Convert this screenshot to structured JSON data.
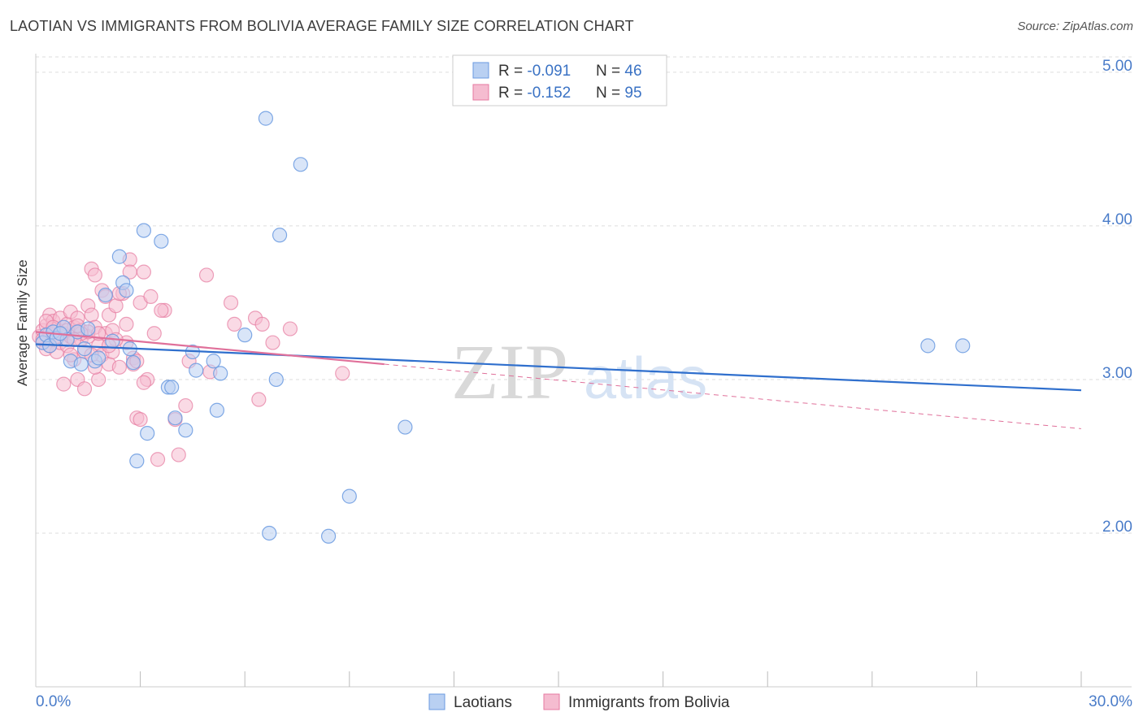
{
  "header": {
    "title": "LAOTIAN VS IMMIGRANTS FROM BOLIVIA AVERAGE FAMILY SIZE CORRELATION CHART",
    "source": "Source: ZipAtlas.com"
  },
  "watermark": {
    "zip": "ZIP",
    "atlas": "atlas"
  },
  "colors": {
    "laotians": "#6a9ae0",
    "laotians_fill": "#b9d0f2",
    "bolivia": "#e67aa0",
    "bolivia_fill": "#f5bcd0",
    "laotians_line": "#2f6fcd",
    "bolivia_line": "#e0709a",
    "grid": "#dddddd",
    "axis_label": "#4a7cc9"
  },
  "legend_box": {
    "rows": [
      {
        "r_label": "R = ",
        "r_value": "-0.091",
        "n_label": "N = ",
        "n_value": "46"
      },
      {
        "r_label": "R = ",
        "r_value": "-0.152",
        "n_label": "N = ",
        "n_value": "95"
      }
    ]
  },
  "bottom_legend": [
    "Laotians",
    "Immigrants from Bolivia"
  ],
  "chart_data": {
    "type": "scatter",
    "title": "LAOTIAN VS IMMIGRANTS FROM BOLIVIA AVERAGE FAMILY SIZE CORRELATION CHART",
    "xlabel": "",
    "ylabel": "Average Family Size",
    "xlim": [
      0,
      30
    ],
    "ylim": [
      1.0,
      5.1
    ],
    "x_tick_labels": [
      "0.0%",
      "30.0%"
    ],
    "y_ticks": [
      2.0,
      3.0,
      4.0,
      5.0
    ],
    "y_tick_labels": [
      "2.00",
      "3.00",
      "4.00",
      "5.00"
    ],
    "grid": "horizontal dashed",
    "legend_placement": "top-center",
    "series": [
      {
        "name": "Laotians",
        "r": -0.091,
        "n": 46,
        "trend": {
          "x": [
            0,
            30
          ],
          "y": [
            3.23,
            2.93
          ]
        },
        "points": [
          [
            0.2,
            3.24
          ],
          [
            0.3,
            3.29
          ],
          [
            0.4,
            3.22
          ],
          [
            0.5,
            3.31
          ],
          [
            0.6,
            3.27
          ],
          [
            0.8,
            3.34
          ],
          [
            0.9,
            3.26
          ],
          [
            1.0,
            3.12
          ],
          [
            1.2,
            3.31
          ],
          [
            1.4,
            3.2
          ],
          [
            1.5,
            3.33
          ],
          [
            1.7,
            3.12
          ],
          [
            1.8,
            3.14
          ],
          [
            2.0,
            3.55
          ],
          [
            2.2,
            3.25
          ],
          [
            2.4,
            3.8
          ],
          [
            2.5,
            3.63
          ],
          [
            2.7,
            3.2
          ],
          [
            2.8,
            3.11
          ],
          [
            3.1,
            3.97
          ],
          [
            3.2,
            2.65
          ],
          [
            2.9,
            2.47
          ],
          [
            3.6,
            3.9
          ],
          [
            3.8,
            2.95
          ],
          [
            3.9,
            2.95
          ],
          [
            4.0,
            2.75
          ],
          [
            4.3,
            2.67
          ],
          [
            4.5,
            3.18
          ],
          [
            4.6,
            3.06
          ],
          [
            5.1,
            3.12
          ],
          [
            5.2,
            2.8
          ],
          [
            5.3,
            3.04
          ],
          [
            6.0,
            3.29
          ],
          [
            6.6,
            4.7
          ],
          [
            6.7,
            2.0
          ],
          [
            6.9,
            3.0
          ],
          [
            7.0,
            3.94
          ],
          [
            7.6,
            4.4
          ],
          [
            8.4,
            1.98
          ],
          [
            9.0,
            2.24
          ],
          [
            10.6,
            2.69
          ],
          [
            25.6,
            3.22
          ],
          [
            26.6,
            3.22
          ],
          [
            1.3,
            3.1
          ],
          [
            0.7,
            3.3
          ],
          [
            2.6,
            3.58
          ]
        ]
      },
      {
        "name": "Immigrants from Bolivia",
        "r": -0.152,
        "n": 95,
        "trend": {
          "x": [
            0,
            10
          ],
          "y": [
            3.31,
            3.1
          ]
        },
        "trend_ext": {
          "x": [
            10,
            30
          ],
          "y": [
            3.1,
            2.68
          ]
        },
        "points": [
          [
            0.1,
            3.28
          ],
          [
            0.2,
            3.32
          ],
          [
            0.2,
            3.24
          ],
          [
            0.3,
            3.2
          ],
          [
            0.3,
            3.35
          ],
          [
            0.4,
            3.3
          ],
          [
            0.4,
            3.42
          ],
          [
            0.5,
            3.26
          ],
          [
            0.5,
            3.38
          ],
          [
            0.6,
            3.33
          ],
          [
            0.6,
            3.18
          ],
          [
            0.7,
            3.4
          ],
          [
            0.7,
            3.24
          ],
          [
            0.8,
            3.3
          ],
          [
            0.8,
            2.97
          ],
          [
            0.9,
            3.36
          ],
          [
            0.9,
            3.22
          ],
          [
            1.0,
            3.44
          ],
          [
            1.0,
            3.28
          ],
          [
            1.1,
            3.13
          ],
          [
            1.1,
            3.34
          ],
          [
            1.2,
            3.4
          ],
          [
            1.2,
            3.0
          ],
          [
            1.3,
            3.26
          ],
          [
            1.3,
            3.32
          ],
          [
            1.4,
            2.94
          ],
          [
            1.4,
            3.18
          ],
          [
            1.5,
            3.48
          ],
          [
            1.5,
            3.28
          ],
          [
            1.6,
            3.72
          ],
          [
            1.6,
            3.42
          ],
          [
            1.7,
            3.68
          ],
          [
            1.7,
            3.34
          ],
          [
            1.8,
            3.22
          ],
          [
            1.8,
            3.0
          ],
          [
            1.9,
            3.58
          ],
          [
            1.9,
            3.16
          ],
          [
            2.0,
            3.3
          ],
          [
            2.0,
            3.54
          ],
          [
            2.1,
            3.42
          ],
          [
            2.1,
            3.1
          ],
          [
            2.2,
            3.18
          ],
          [
            2.2,
            3.32
          ],
          [
            2.3,
            3.48
          ],
          [
            2.4,
            3.08
          ],
          [
            2.5,
            3.56
          ],
          [
            2.6,
            3.24
          ],
          [
            2.7,
            3.78
          ],
          [
            2.7,
            3.7
          ],
          [
            2.8,
            3.14
          ],
          [
            2.9,
            2.75
          ],
          [
            3.0,
            2.74
          ],
          [
            3.0,
            3.5
          ],
          [
            3.1,
            3.7
          ],
          [
            3.2,
            3.0
          ],
          [
            3.3,
            3.54
          ],
          [
            3.4,
            3.3
          ],
          [
            3.5,
            2.48
          ],
          [
            3.7,
            3.45
          ],
          [
            4.0,
            2.74
          ],
          [
            4.1,
            2.51
          ],
          [
            4.3,
            2.83
          ],
          [
            4.4,
            3.12
          ],
          [
            4.9,
            3.68
          ],
          [
            5.0,
            3.05
          ],
          [
            5.6,
            3.5
          ],
          [
            5.7,
            3.36
          ],
          [
            6.3,
            3.4
          ],
          [
            6.4,
            2.87
          ],
          [
            6.5,
            3.36
          ],
          [
            6.8,
            3.24
          ],
          [
            7.3,
            3.33
          ],
          [
            8.8,
            3.04
          ],
          [
            0.3,
            3.38
          ],
          [
            0.6,
            3.28
          ],
          [
            1.0,
            3.16
          ],
          [
            1.5,
            3.31
          ],
          [
            1.7,
            3.08
          ],
          [
            2.3,
            3.26
          ],
          [
            2.6,
            3.36
          ],
          [
            2.8,
            3.1
          ],
          [
            3.1,
            2.98
          ],
          [
            0.2,
            3.26
          ],
          [
            0.9,
            3.32
          ],
          [
            1.3,
            3.3
          ],
          [
            1.8,
            3.3
          ],
          [
            2.1,
            3.22
          ],
          [
            0.5,
            3.34
          ],
          [
            1.1,
            3.26
          ],
          [
            1.6,
            3.16
          ],
          [
            2.4,
            3.56
          ],
          [
            0.4,
            3.22
          ],
          [
            1.2,
            3.35
          ],
          [
            2.9,
            3.12
          ],
          [
            3.6,
            3.45
          ]
        ]
      }
    ]
  }
}
